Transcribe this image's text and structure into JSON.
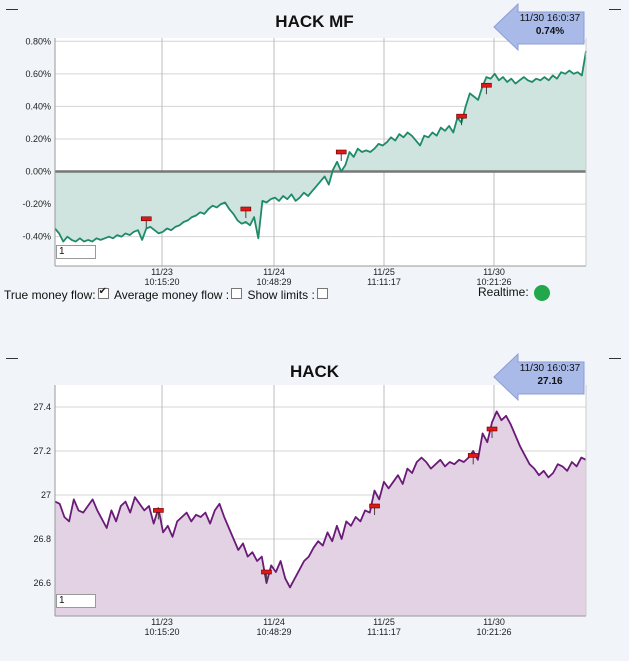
{
  "chart_data": [
    {
      "type": "area",
      "title": "HACK MF",
      "ylim": [
        -0.0058,
        0.0082
      ],
      "yticks": [
        -0.004,
        -0.002,
        0.0,
        0.002,
        0.004,
        0.006,
        0.008
      ],
      "ytick_labels": [
        "-0.40%",
        "-0.20%",
        "0.00%",
        "0.20%",
        "0.40%",
        "0.60%",
        "0.80%"
      ],
      "xtick_labels": [
        [
          "11/23",
          "10:15:20"
        ],
        [
          "11/24",
          "10:48:29"
        ],
        [
          "11/25",
          "11:11:17"
        ],
        [
          "11/30",
          "10:21:26"
        ]
      ],
      "grid": true,
      "line_color": "#1e8a68",
      "fill_color": "#cfe4df",
      "callout": {
        "time": "11/30 16:0:37",
        "value": "0.74%"
      },
      "input_value": "1",
      "series": [
        {
          "values": [
            -0.0035,
            -0.0038,
            -0.0043,
            -0.004,
            -0.0042,
            -0.0043,
            -0.0041,
            -0.0043,
            -0.0042,
            -0.0043,
            -0.0041,
            -0.0042,
            -0.0041,
            -0.004,
            -0.0041,
            -0.0039,
            -0.004,
            -0.0038,
            -0.0039,
            -0.0037,
            -0.0036,
            -0.0042,
            -0.0035,
            -0.0034,
            -0.0036,
            -0.0038,
            -0.0037,
            -0.0035,
            -0.0036,
            -0.0034,
            -0.0033,
            -0.0031,
            -0.003,
            -0.0028,
            -0.0027,
            -0.0025,
            -0.0026,
            -0.0023,
            -0.0021,
            -0.0022,
            -0.002,
            -0.0019,
            -0.0023,
            -0.0026,
            -0.003,
            -0.0032,
            -0.0031,
            -0.0033,
            -0.0028,
            -0.0041,
            -0.0018,
            -0.0019,
            -0.0017,
            -0.0016,
            -0.0018,
            -0.0015,
            -0.0017,
            -0.0014,
            -0.0018,
            -0.0016,
            -0.0013,
            -0.0015,
            -0.0012,
            -0.0009,
            -0.0006,
            -0.0003,
            -0.0008,
            0.0001,
            0.0006,
            0.0,
            0.0004,
            0.0012,
            0.0009,
            0.0014,
            0.0012,
            0.0013,
            0.0012,
            0.0014,
            0.0017,
            0.0016,
            0.0018,
            0.0021,
            0.0019,
            0.0023,
            0.0021,
            0.0024,
            0.0022,
            0.0019,
            0.0016,
            0.0022,
            0.0021,
            0.0024,
            0.0022,
            0.0027,
            0.0025,
            0.0028,
            0.0024,
            0.0033,
            0.003,
            0.004,
            0.0048,
            0.0046,
            0.0044,
            0.0052,
            0.0058,
            0.0057,
            0.006,
            0.0056,
            0.0058,
            0.0055,
            0.0057,
            0.0054,
            0.0056,
            0.0058,
            0.0056,
            0.0055,
            0.0057,
            0.0056,
            0.0058,
            0.0056,
            0.0059,
            0.0057,
            0.0061,
            0.006,
            0.0062,
            0.006,
            0.0061,
            0.0059,
            0.0074
          ]
        }
      ],
      "markers": [
        {
          "index": 22,
          "value": -0.0029
        },
        {
          "index": 46,
          "value": -0.0023
        },
        {
          "index": 69,
          "value": 0.0012
        },
        {
          "index": 98,
          "value": 0.0034
        },
        {
          "index": 104,
          "value": 0.0053
        }
      ]
    },
    {
      "type": "area",
      "title": "HACK",
      "ylim": [
        26.45,
        27.5
      ],
      "yticks": [
        26.6,
        26.8,
        27.0,
        27.2,
        27.4
      ],
      "ytick_labels": [
        "26.6",
        "26.8",
        "27",
        "27.2",
        "27.4"
      ],
      "xtick_labels": [
        [
          "11/23",
          "10:15:20"
        ],
        [
          "11/24",
          "10:48:29"
        ],
        [
          "11/25",
          "11:11:17"
        ],
        [
          "11/30",
          "10:21:26"
        ]
      ],
      "grid": true,
      "line_color": "#6a1b78",
      "fill_color": "#e2d2e3",
      "callout": {
        "time": "11/30 16:0:37",
        "value": "27.16"
      },
      "input_value": "1",
      "series": [
        {
          "values": [
            26.97,
            26.96,
            26.9,
            26.88,
            26.98,
            26.93,
            26.92,
            26.95,
            26.98,
            26.93,
            26.89,
            26.85,
            26.93,
            26.88,
            26.95,
            26.97,
            26.92,
            26.99,
            26.96,
            26.93,
            26.95,
            26.87,
            26.94,
            26.83,
            26.86,
            26.81,
            26.88,
            26.9,
            26.92,
            26.88,
            26.91,
            26.9,
            26.92,
            26.87,
            26.93,
            26.96,
            26.9,
            26.85,
            26.8,
            26.75,
            26.78,
            26.72,
            26.74,
            26.7,
            26.72,
            26.6,
            26.68,
            26.65,
            26.7,
            26.62,
            26.58,
            26.62,
            26.66,
            26.7,
            26.72,
            26.76,
            26.79,
            26.77,
            26.83,
            26.79,
            26.86,
            26.8,
            26.88,
            26.86,
            26.9,
            26.88,
            26.93,
            26.92,
            27.02,
            26.98,
            27.06,
            27.03,
            27.06,
            27.09,
            27.05,
            27.12,
            27.1,
            27.15,
            27.17,
            27.15,
            27.12,
            27.14,
            27.16,
            27.13,
            27.15,
            27.14,
            27.16,
            27.15,
            27.17,
            27.2,
            27.16,
            27.28,
            27.24,
            27.33,
            27.38,
            27.34,
            27.36,
            27.32,
            27.27,
            27.22,
            27.18,
            27.14,
            27.12,
            27.09,
            27.11,
            27.08,
            27.1,
            27.14,
            27.13,
            27.11,
            27.15,
            27.13,
            27.17,
            27.16
          ]
        }
      ],
      "markers": [
        {
          "index": 22,
          "value": 26.93
        },
        {
          "index": 45,
          "value": 26.65
        },
        {
          "index": 68,
          "value": 26.95
        },
        {
          "index": 89,
          "value": 27.18
        },
        {
          "index": 93,
          "value": 27.3
        }
      ]
    }
  ],
  "controls": {
    "true_money_flow": "True money flow:",
    "average_money_flow": "Average money flow :",
    "show_limits": "Show limits :",
    "realtime": "Realtime:"
  }
}
